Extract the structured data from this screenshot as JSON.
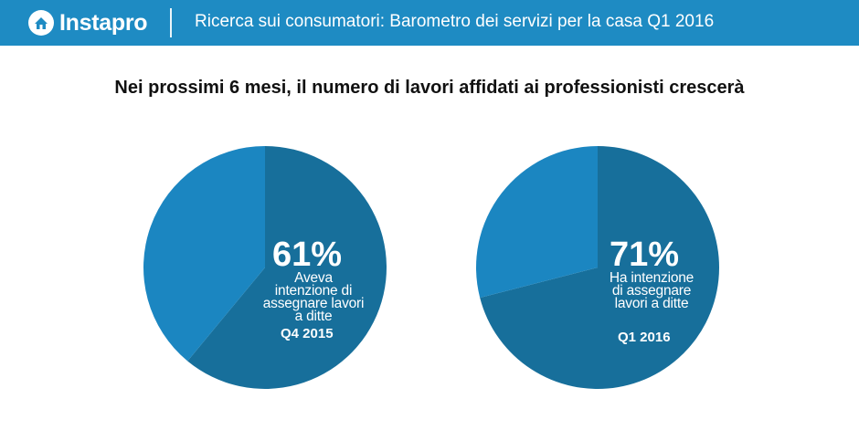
{
  "header": {
    "logo_text": "Instapro",
    "title": "Ricerca sui consumatori: Barometro dei servizi per la casa Q1 2016"
  },
  "colors": {
    "header_bg": "#1e8bc3",
    "slice_main": "#176f9b",
    "slice_other": "#1b86c1"
  },
  "chart_data": [
    {
      "type": "pie",
      "title": "Nei prossimi 6 mesi, il numero di lavori affidati ai professionisti crescerà",
      "period": "Q4 2015",
      "slices": [
        {
          "label": "Aveva intenzione di assegnare lavori a ditte",
          "value": 61
        },
        {
          "label": "",
          "value": 39
        }
      ],
      "value_label": "61%",
      "description_lines": [
        "Aveva",
        "intenzione di",
        "assegnare lavori",
        "a ditte"
      ]
    },
    {
      "type": "pie",
      "title": "Nei prossimi 6 mesi, il numero di lavori affidati ai professionisti crescerà",
      "period": "Q1 2016",
      "slices": [
        {
          "label": "Ha intenzione di assegnare lavori a ditte",
          "value": 71
        },
        {
          "label": "",
          "value": 29
        }
      ],
      "value_label": "71%",
      "description_lines": [
        "Ha intenzione",
        "di assegnare",
        "lavori a ditte"
      ]
    }
  ]
}
